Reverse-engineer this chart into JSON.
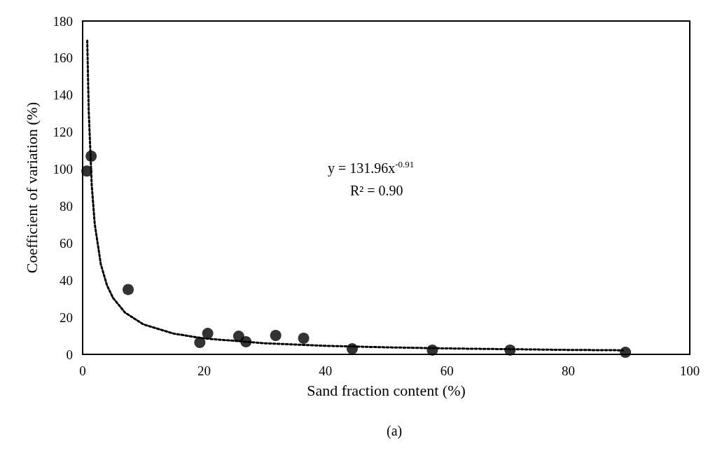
{
  "chart_data": {
    "type": "scatter",
    "xlabel": "Sand fraction content (%)",
    "ylabel": "Coefficient of variation (%)",
    "xlim": [
      0,
      100
    ],
    "xticks": [
      0,
      20,
      40,
      60,
      80,
      100
    ],
    "ylim": [
      0,
      180
    ],
    "yticks": [
      0,
      20,
      40,
      60,
      80,
      100,
      120,
      140,
      160,
      180
    ],
    "grid": false,
    "marker": "circle",
    "annotations": [
      "y = 131.96x$^{-0.91}$",
      "R² = 0.90",
      "(a)"
    ],
    "series": [
      {
        "color": "#000000",
        "x": [
          0.7,
          1.4,
          7.5,
          19.3,
          20.6,
          25.7,
          26.9,
          31.8,
          36.4,
          44.4,
          57.6,
          70.4,
          89.4
        ],
        "values": [
          99,
          107,
          35,
          6.4,
          11.3,
          9.8,
          6.8,
          10.2,
          8.7,
          3.0,
          2.3,
          2.3,
          1.1
        ]
      },
      {
        "type": "line",
        "color": "#000000",
        "marker": "none",
        "line_style": "dotted",
        "x": [
          0.76,
          1,
          1.5,
          2,
          3,
          4,
          5,
          7,
          10,
          15,
          20,
          30,
          40,
          50,
          60,
          70,
          80,
          89
        ],
        "values": [
          169.4,
          132,
          91.2,
          70.2,
          48.6,
          37.4,
          30.5,
          22.5,
          16.2,
          11.2,
          8.6,
          6.0,
          4.6,
          3.8,
          3.2,
          2.8,
          2.4,
          2.2
        ]
      }
    ]
  }
}
